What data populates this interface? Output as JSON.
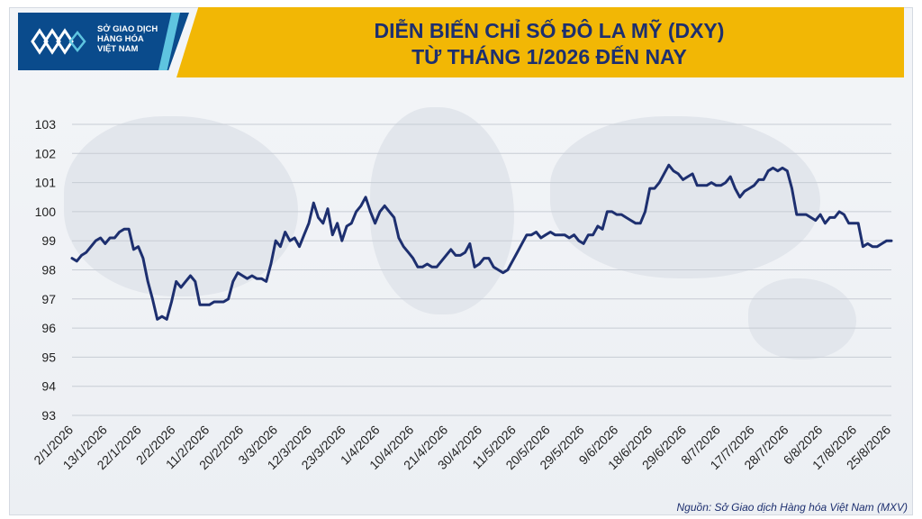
{
  "logo": {
    "line1": "SỞ GIAO DỊCH",
    "line2": "HÀNG HÓA",
    "line3": "VIỆT NAM"
  },
  "header": {
    "title_line1": "DIỄN BIẾN CHỈ SỐ ĐÔ LA MỸ (DXY)",
    "title_line2": "TỪ THÁNG 1/2026 ĐẾN NAY"
  },
  "source": "Nguồn: Sở Giao dịch Hàng hóa Việt Nam (MXV)",
  "colors": {
    "line": "#1d2f6f",
    "header": "#f2b705",
    "logo": "#0a4b8c",
    "grid": "#c7ccd4"
  },
  "chart_data": {
    "type": "line",
    "title": "DIỄN BIẾN CHỈ SỐ ĐÔ LA MỸ (DXY)",
    "subtitle": "TỪ THÁNG 1/2026 ĐẾN NAY",
    "xlabel": "",
    "ylabel": "",
    "ylim": [
      93,
      103
    ],
    "yticks": [
      93,
      94,
      95,
      96,
      97,
      98,
      99,
      100,
      101,
      102,
      103
    ],
    "grid": true,
    "legend": "none",
    "x_tick_labels": [
      "2/1/2026",
      "13/1/2026",
      "22/1/2026",
      "2/2/2026",
      "11/2/2026",
      "20/2/2026",
      "3/3/2026",
      "12/3/2026",
      "23/3/2026",
      "1/4/2026",
      "10/4/2026",
      "21/4/2026",
      "30/4/2026",
      "11/5/2026",
      "20/5/2026",
      "29/5/2026",
      "9/6/2026",
      "18/6/2026",
      "29/6/2026",
      "8/7/2026",
      "17/7/2026",
      "28/7/2026",
      "6/8/2026",
      "17/8/2026",
      "25/8/2026"
    ],
    "values": [
      98.4,
      98.3,
      98.5,
      98.6,
      98.8,
      99.0,
      99.1,
      98.9,
      99.1,
      99.1,
      99.3,
      99.4,
      99.4,
      98.7,
      98.8,
      98.4,
      97.6,
      97.0,
      96.3,
      96.4,
      96.3,
      96.9,
      97.6,
      97.4,
      97.6,
      97.8,
      97.6,
      96.8,
      96.8,
      96.8,
      96.9,
      96.9,
      96.9,
      97.0,
      97.6,
      97.9,
      97.8,
      97.7,
      97.8,
      97.7,
      97.7,
      97.6,
      98.2,
      99.0,
      98.8,
      99.3,
      99.0,
      99.1,
      98.8,
      99.2,
      99.6,
      100.3,
      99.8,
      99.6,
      100.1,
      99.2,
      99.6,
      99.0,
      99.5,
      99.6,
      100.0,
      100.2,
      100.5,
      100.0,
      99.6,
      100.0,
      100.2,
      100.0,
      99.8,
      99.1,
      98.8,
      98.6,
      98.4,
      98.1,
      98.1,
      98.2,
      98.1,
      98.1,
      98.3,
      98.5,
      98.7,
      98.5,
      98.5,
      98.6,
      98.9,
      98.1,
      98.2,
      98.4,
      98.4,
      98.1,
      98.0,
      97.9,
      98.0,
      98.3,
      98.6,
      98.9,
      99.2,
      99.2,
      99.3,
      99.1,
      99.2,
      99.3,
      99.2,
      99.2,
      99.2,
      99.1,
      99.2,
      99.0,
      98.9,
      99.2,
      99.2,
      99.5,
      99.4,
      100.0,
      100.0,
      99.9,
      99.9,
      99.8,
      99.7,
      99.6,
      99.6,
      100.0,
      100.8,
      100.8,
      101.0,
      101.3,
      101.6,
      101.4,
      101.3,
      101.1,
      101.2,
      101.3,
      100.9,
      100.9,
      100.9,
      101.0,
      100.9,
      100.9,
      101.0,
      101.2,
      100.8,
      100.5,
      100.7,
      100.8,
      100.9,
      101.1,
      101.1,
      101.4,
      101.5,
      101.4,
      101.5,
      101.4,
      100.8,
      99.9,
      99.9,
      99.9,
      99.8,
      99.7,
      99.9,
      99.6,
      99.8,
      99.8,
      100.0,
      99.9,
      99.6,
      99.6,
      99.6,
      98.8,
      98.9,
      98.8,
      98.8,
      98.9,
      99.0,
      99.0
    ]
  }
}
